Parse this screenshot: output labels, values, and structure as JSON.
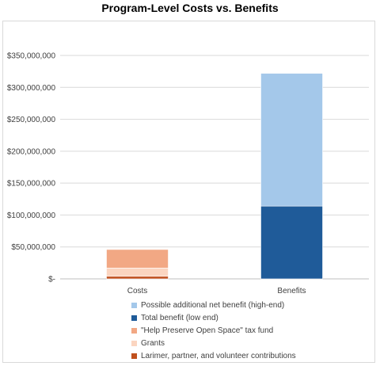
{
  "chart_data": {
    "type": "bar",
    "stacked": true,
    "title": "Program-Level Costs vs. Benefits",
    "categories": [
      "Costs",
      "Benefits"
    ],
    "ylim": [
      0,
      350000000
    ],
    "yticks": [
      0,
      50000000,
      100000000,
      150000000,
      200000000,
      250000000,
      300000000,
      350000000
    ],
    "ytick_labels": [
      "$-",
      "$50,000,000",
      "$100,000,000",
      "$150,000,000",
      "$200,000,000",
      "$250,000,000",
      "$300,000,000",
      "$350,000,000"
    ],
    "grid": true,
    "legend_position": "bottom",
    "series": [
      {
        "name": "Larimer, partner, and volunteer contributions",
        "color": "#c0501e",
        "values": [
          4000000,
          0
        ]
      },
      {
        "name": "Grants",
        "color": "#fbd5c0",
        "values": [
          13000000,
          0
        ]
      },
      {
        "name": "\"Help Preserve Open Space\" tax fund",
        "color": "#f2a884",
        "values": [
          29000000,
          0
        ]
      },
      {
        "name": "Total benefit (low end)",
        "color": "#1f5b99",
        "values": [
          0,
          114000000
        ]
      },
      {
        "name": "Possible additional net benefit (high-end)",
        "color": "#a4c8ea",
        "values": [
          0,
          208000000
        ]
      }
    ],
    "legend_order": [
      4,
      3,
      2,
      1,
      0
    ]
  }
}
